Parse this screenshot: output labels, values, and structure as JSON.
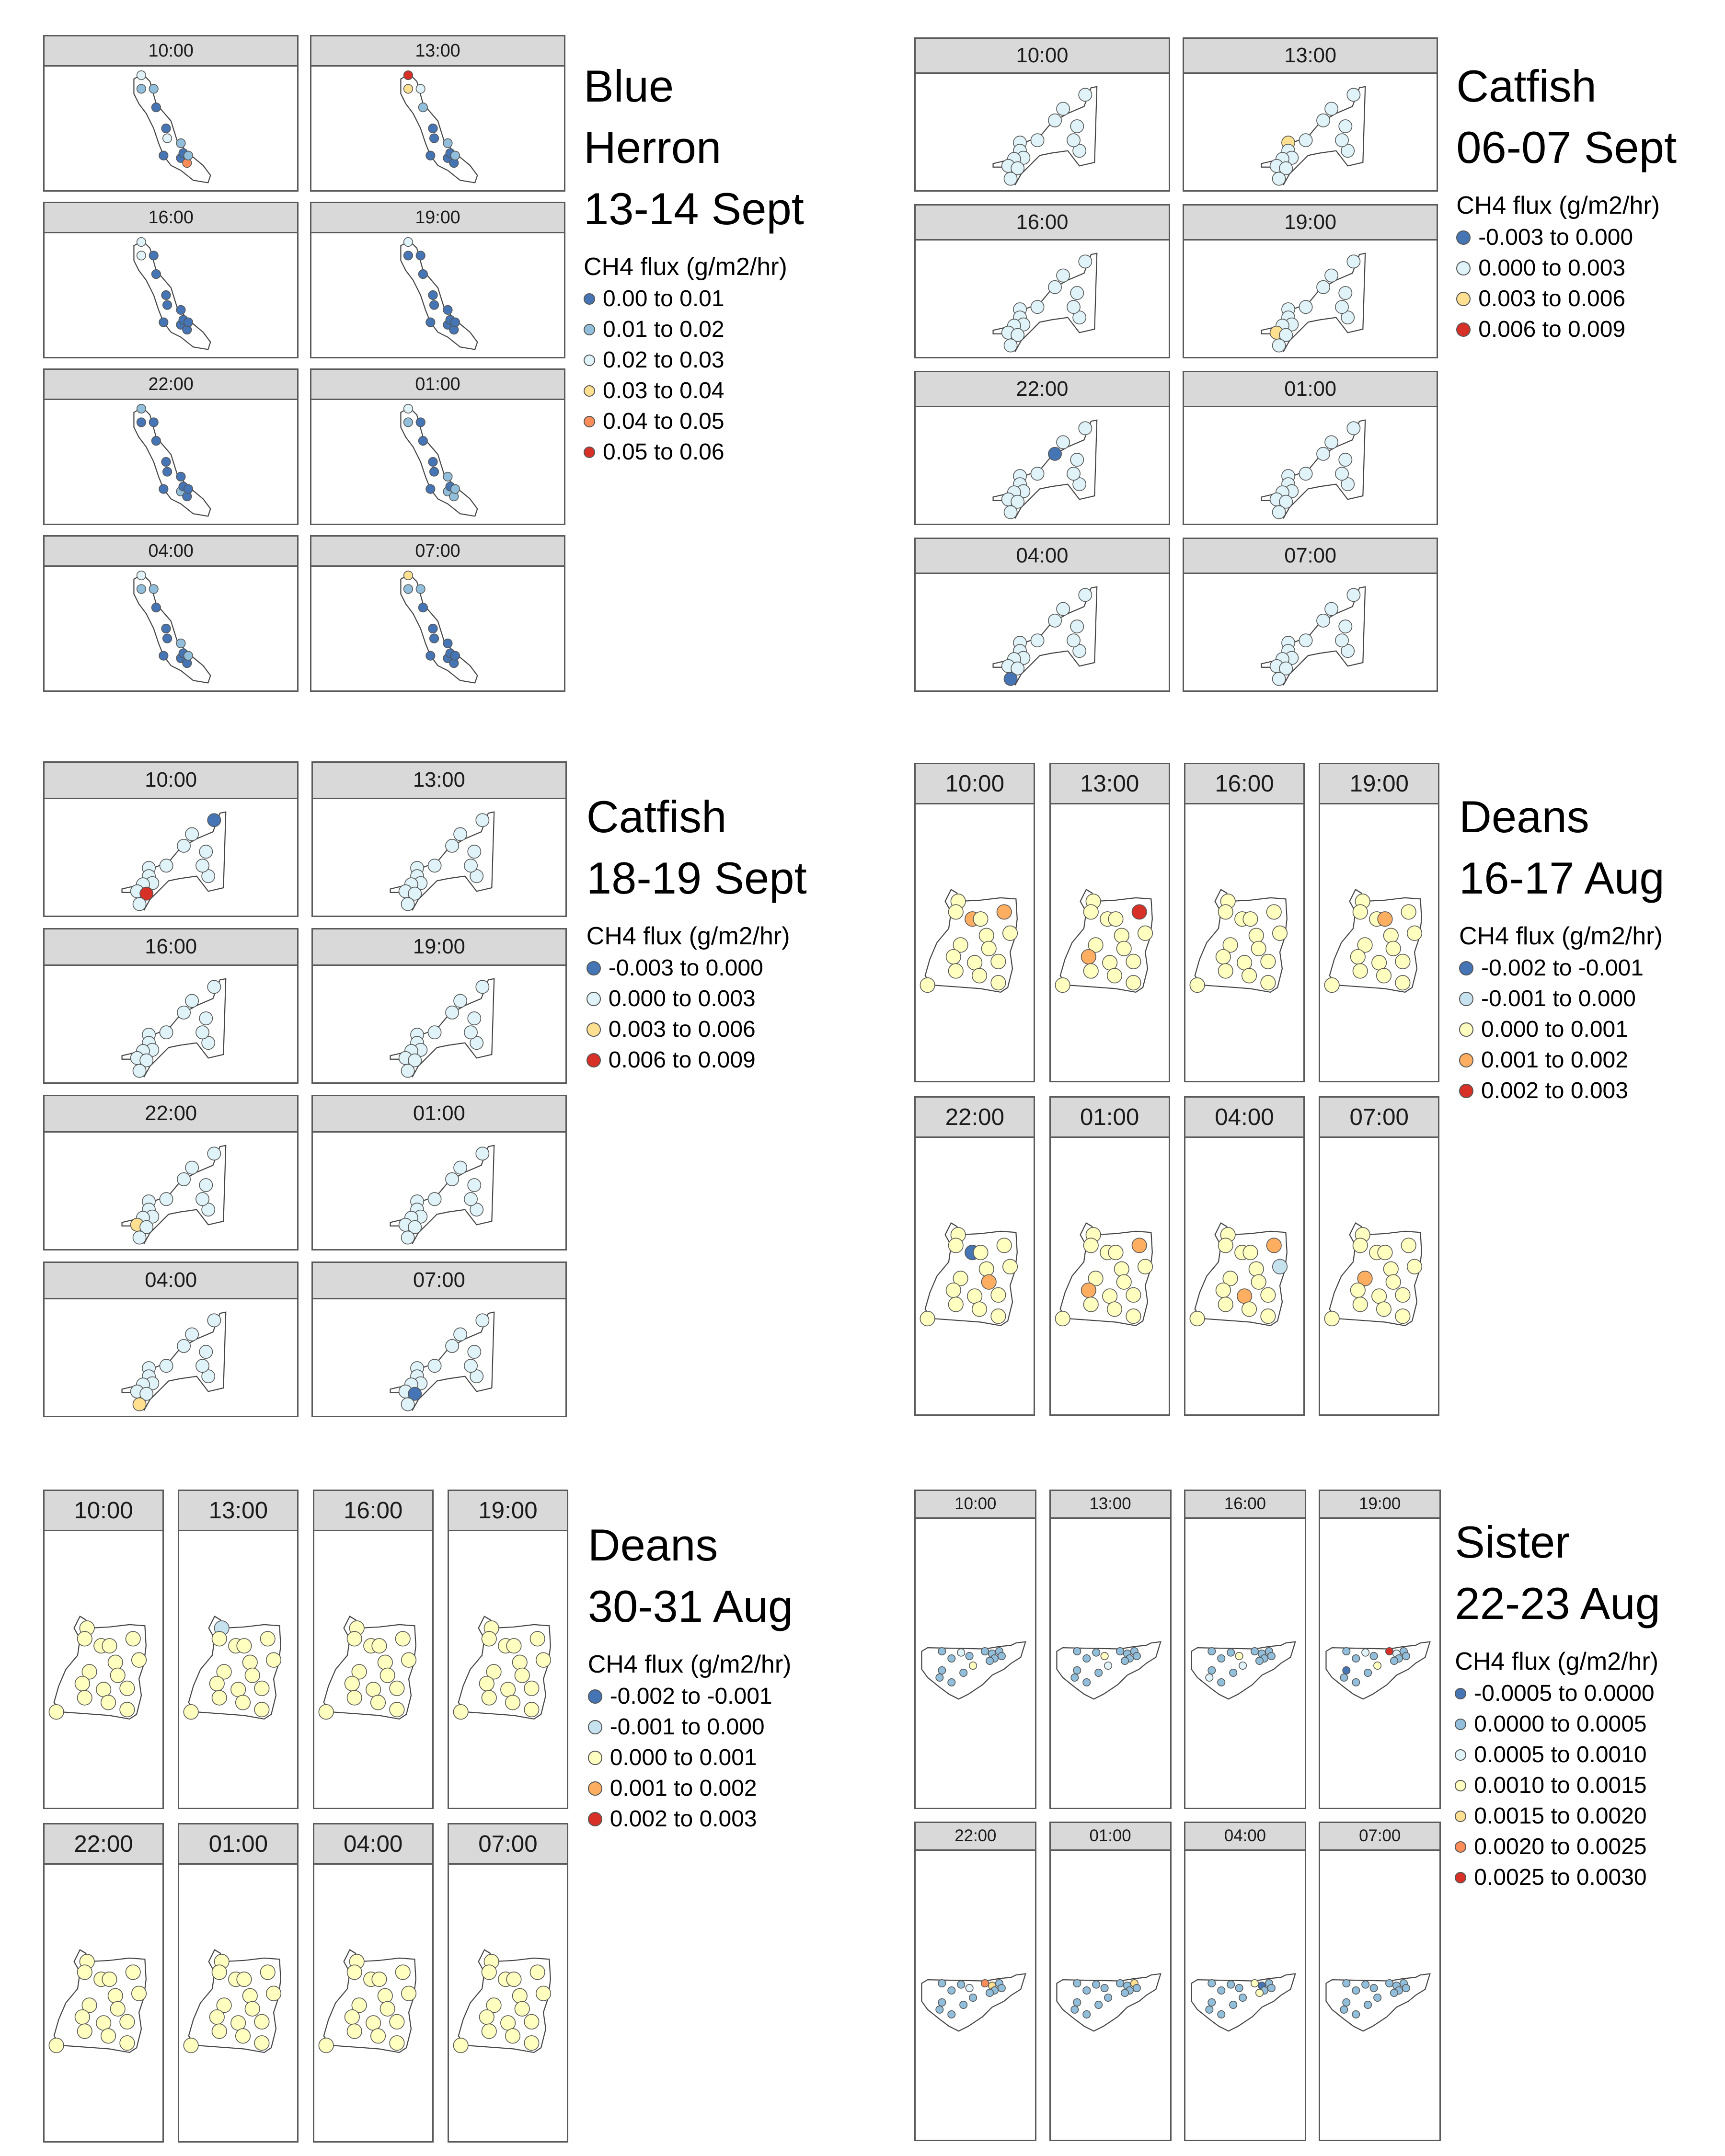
{
  "groups": [
    {
      "id": "blue-herron",
      "title": [
        "Blue",
        "Herron",
        "13-14 Sept"
      ],
      "flux_label": "CH4 flux (g/m2/hr)",
      "lake": "blueherron",
      "legend": [
        {
          "label": "0.00 to 0.01",
          "color": "#4575b4"
        },
        {
          "label": "0.01 to 0.02",
          "color": "#91bfdb"
        },
        {
          "label": "0.02 to 0.03",
          "color": "#e0f3f8"
        },
        {
          "label": "0.03 to 0.04",
          "color": "#fee090"
        },
        {
          "label": "0.04 to 0.05",
          "color": "#fc8d59"
        },
        {
          "label": "0.05 to 0.06",
          "color": "#d73027"
        }
      ],
      "panels": [
        {
          "time": "10:00"
        },
        {
          "time": "13:00"
        },
        {
          "time": "16:00"
        },
        {
          "time": "19:00"
        },
        {
          "time": "22:00"
        },
        {
          "time": "01:00"
        },
        {
          "time": "04:00"
        },
        {
          "time": "07:00"
        }
      ]
    },
    {
      "id": "catfish-sept06",
      "title": [
        "Catfish",
        "06-07 Sept"
      ],
      "flux_label": "CH4 flux (g/m2/hr)",
      "lake": "catfish",
      "legend": [
        {
          "label": "-0.003 to 0.000",
          "color": "#4575b4"
        },
        {
          "label": "0.000 to 0.003",
          "color": "#e0f3f8"
        },
        {
          "label": "0.003 to 0.006",
          "color": "#fee090"
        },
        {
          "label": "0.006 to 0.009",
          "color": "#d73027"
        }
      ],
      "panels": [
        {
          "time": "10:00"
        },
        {
          "time": "13:00"
        },
        {
          "time": "16:00"
        },
        {
          "time": "19:00"
        },
        {
          "time": "22:00"
        },
        {
          "time": "01:00"
        },
        {
          "time": "04:00"
        },
        {
          "time": "07:00"
        }
      ]
    },
    {
      "id": "catfish-sept18",
      "title": [
        "Catfish",
        "18-19 Sept"
      ],
      "flux_label": "CH4 flux (g/m2/hr)",
      "lake": "catfish",
      "legend": [
        {
          "label": "-0.003 to 0.000",
          "color": "#4575b4"
        },
        {
          "label": "0.000 to 0.003",
          "color": "#e0f3f8"
        },
        {
          "label": "0.003 to 0.006",
          "color": "#fee090"
        },
        {
          "label": "0.006 to 0.009",
          "color": "#d73027"
        }
      ],
      "panels": [
        {
          "time": "10:00"
        },
        {
          "time": "13:00"
        },
        {
          "time": "16:00"
        },
        {
          "time": "19:00"
        },
        {
          "time": "22:00"
        },
        {
          "time": "01:00"
        },
        {
          "time": "04:00"
        },
        {
          "time": "07:00"
        }
      ]
    },
    {
      "id": "deans-aug16",
      "title": [
        "Deans",
        "16-17 Aug"
      ],
      "flux_label": "CH4 flux (g/m2/hr)",
      "lake": "deans",
      "legend": [
        {
          "label": "-0.002 to -0.001",
          "color": "#4575b4"
        },
        {
          "label": "-0.001 to 0.000",
          "color": "#c6e2ef"
        },
        {
          "label": "0.000 to 0.001",
          "color": "#ffffbf"
        },
        {
          "label": "0.001 to 0.002",
          "color": "#fdae61"
        },
        {
          "label": "0.002 to 0.003",
          "color": "#d73027"
        }
      ],
      "panels": [
        {
          "time": "10:00"
        },
        {
          "time": "13:00"
        },
        {
          "time": "16:00"
        },
        {
          "time": "19:00"
        },
        {
          "time": "22:00"
        },
        {
          "time": "01:00"
        },
        {
          "time": "04:00"
        },
        {
          "time": "07:00"
        }
      ]
    },
    {
      "id": "deans-aug30",
      "title": [
        "Deans",
        "30-31 Aug"
      ],
      "flux_label": "CH4 flux (g/m2/hr)",
      "lake": "deans",
      "legend": [
        {
          "label": "-0.002 to -0.001",
          "color": "#4575b4"
        },
        {
          "label": "-0.001 to 0.000",
          "color": "#c6e2ef"
        },
        {
          "label": "0.000 to 0.001",
          "color": "#ffffbf"
        },
        {
          "label": "0.001 to 0.002",
          "color": "#fdae61"
        },
        {
          "label": "0.002 to 0.003",
          "color": "#d73027"
        }
      ],
      "panels": [
        {
          "time": "10:00"
        },
        {
          "time": "13:00"
        },
        {
          "time": "16:00"
        },
        {
          "time": "19:00"
        },
        {
          "time": "22:00"
        },
        {
          "time": "01:00"
        },
        {
          "time": "04:00"
        },
        {
          "time": "07:00"
        }
      ]
    },
    {
      "id": "sister-aug22",
      "title": [
        "Sister",
        "22-23 Aug"
      ],
      "flux_label": "CH4 flux (g/m2/hr)",
      "lake": "sister",
      "legend": [
        {
          "label": "-0.0005 to 0.0000",
          "color": "#4575b4"
        },
        {
          "label": "0.0000 to 0.0005",
          "color": "#91bfdb"
        },
        {
          "label": "0.0005 to 0.0010",
          "color": "#e0f3f8"
        },
        {
          "label": "0.0010 to 0.0015",
          "color": "#ffffbf"
        },
        {
          "label": "0.0015 to 0.0020",
          "color": "#fee090"
        },
        {
          "label": "0.0020 to 0.0025",
          "color": "#fc8d59"
        },
        {
          "label": "0.0025 to 0.0030",
          "color": "#d73027"
        }
      ],
      "panels": [
        {
          "time": "10:00"
        },
        {
          "time": "13:00"
        },
        {
          "time": "16:00"
        },
        {
          "time": "19:00"
        },
        {
          "time": "22:00"
        },
        {
          "time": "01:00"
        },
        {
          "time": "04:00"
        },
        {
          "time": "07:00"
        }
      ]
    }
  ]
}
